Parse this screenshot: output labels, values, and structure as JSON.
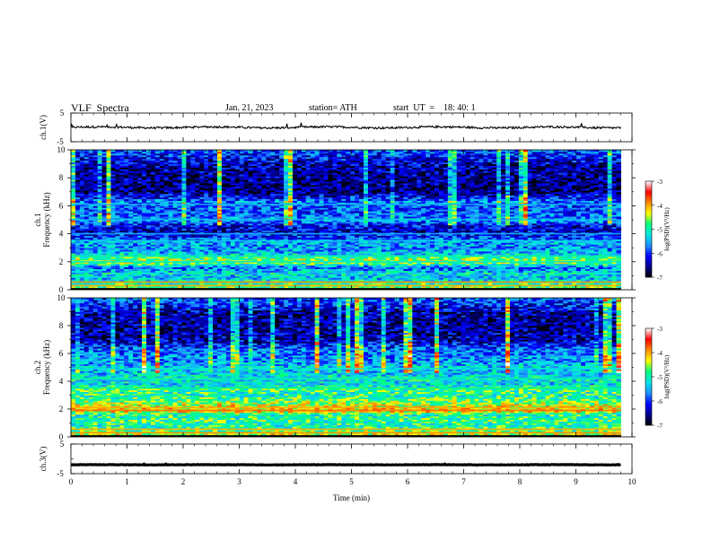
{
  "header": {
    "title": "VLF  Spectra",
    "date": "Jan. 21, 2023",
    "station": "station= ATH",
    "start": "start  UT  =    18: 40: 1"
  },
  "chart_data": [
    {
      "id": "ch1-waveform",
      "type": "line",
      "ylabel": "ch.1(V)",
      "ylim": [
        -5,
        5
      ],
      "yticks": [
        "5",
        "-5"
      ],
      "xlim": [
        0,
        10
      ],
      "series": [
        {
          "values_summary": {
            "baseline": 0,
            "noise_amplitude": 0.6,
            "x_end": 9.8
          }
        }
      ]
    },
    {
      "id": "ch1-spectrogram",
      "type": "heatmap",
      "ylabel": "ch.1\nFrequency  (kHz)",
      "ylim": [
        0,
        10
      ],
      "yticks": [
        "0",
        "2",
        "4",
        "6",
        "8",
        "10"
      ],
      "xlim": [
        0,
        10
      ],
      "x_end": 9.8,
      "profile": [
        [
          0.0,
          -4.3
        ],
        [
          0.3,
          -4.9
        ],
        [
          0.6,
          -5.0
        ],
        [
          0.8,
          -5.4
        ],
        [
          1.2,
          -5.2
        ],
        [
          1.6,
          -5.8
        ],
        [
          1.9,
          -4.7
        ],
        [
          2.1,
          -4.5
        ],
        [
          2.4,
          -5.0
        ],
        [
          2.7,
          -5.5
        ],
        [
          3.0,
          -5.6
        ],
        [
          3.4,
          -5.5
        ],
        [
          3.8,
          -6.0
        ],
        [
          4.2,
          -6.3
        ],
        [
          4.6,
          -6.2
        ],
        [
          5.0,
          -5.5
        ],
        [
          5.3,
          -5.8
        ],
        [
          5.8,
          -5.9
        ],
        [
          6.3,
          -5.7
        ],
        [
          7.0,
          -6.6
        ],
        [
          8.0,
          -6.5
        ],
        [
          9.0,
          -6.4
        ],
        [
          10.0,
          -5.8
        ]
      ],
      "lines": [
        {
          "freq": 0.3,
          "value": -4.0
        },
        {
          "freq": 0.55,
          "value": -3.9
        },
        {
          "freq": 2.0,
          "value": -5.1
        },
        {
          "freq": 2.4,
          "value": -5.0
        },
        {
          "freq": 3.5,
          "value": -5.3
        },
        {
          "freq": 4.0,
          "value": -5.5
        },
        {
          "freq": 5.0,
          "value": -5.4
        },
        {
          "freq": 6.1,
          "value": -5.5
        }
      ]
    },
    {
      "id": "ch1-colorbar",
      "type": "colorbar",
      "label": "log(PSD)(V²/Hz)",
      "range": [
        -7,
        -3
      ],
      "ticks": [
        "-3",
        "-4",
        "-5",
        "-6",
        "-7"
      ]
    },
    {
      "id": "ch2-spectrogram",
      "type": "heatmap",
      "ylabel": "ch.2\nFrequency  (kHz)",
      "ylim": [
        0,
        10
      ],
      "yticks": [
        "0",
        "2",
        "4",
        "6",
        "8",
        "10"
      ],
      "xlim": [
        0,
        10
      ],
      "x_end": 9.8,
      "profile": [
        [
          0.0,
          -4.1
        ],
        [
          0.4,
          -4.7
        ],
        [
          0.8,
          -5.0
        ],
        [
          1.2,
          -4.8
        ],
        [
          1.6,
          -5.0
        ],
        [
          1.9,
          -4.0
        ],
        [
          2.1,
          -4.2
        ],
        [
          2.5,
          -4.6
        ],
        [
          3.0,
          -5.0
        ],
        [
          3.4,
          -4.8
        ],
        [
          3.8,
          -5.3
        ],
        [
          4.2,
          -5.1
        ],
        [
          4.6,
          -5.4
        ],
        [
          5.0,
          -5.3
        ],
        [
          5.4,
          -5.6
        ],
        [
          5.8,
          -5.6
        ],
        [
          6.3,
          -5.8
        ],
        [
          7.0,
          -6.4
        ],
        [
          8.0,
          -6.5
        ],
        [
          9.0,
          -6.4
        ],
        [
          10.0,
          -5.8
        ]
      ],
      "lines": [
        {
          "freq": 0.3,
          "value": -3.9
        },
        {
          "freq": 0.55,
          "value": -4.0
        },
        {
          "freq": 1.9,
          "value": -3.8
        },
        {
          "freq": 2.1,
          "value": -4.0
        },
        {
          "freq": 3.5,
          "value": -4.8
        },
        {
          "freq": 4.2,
          "value": -5.0
        },
        {
          "freq": 4.9,
          "value": -5.2
        }
      ]
    },
    {
      "id": "ch2-colorbar",
      "type": "colorbar",
      "label": "log(PSD)(V²/Hz)",
      "range": [
        -7,
        -3
      ],
      "ticks": [
        "-3",
        "-4",
        "-5",
        "-6",
        "-7"
      ]
    },
    {
      "id": "ch3-waveform",
      "type": "line",
      "ylabel": "ch.3(V)",
      "ylim": [
        -5,
        5
      ],
      "yticks": [
        "5",
        "-5"
      ],
      "xlim": [
        0,
        10
      ],
      "series": [
        {
          "values_summary": {
            "baseline": -2.0,
            "noise_amplitude": 0.1,
            "x_end": 9.8
          }
        }
      ]
    }
  ],
  "xaxis": {
    "label": "Time  (min)",
    "ticks": [
      "0",
      "1",
      "2",
      "3",
      "4",
      "5",
      "6",
      "7",
      "8",
      "9",
      "10"
    ]
  },
  "colors": {
    "colormap": [
      "#000000",
      "#00008b",
      "#0000ff",
      "#1e90ff",
      "#00e5e5",
      "#00ff7f",
      "#ffff00",
      "#ff8c00",
      "#ff0000",
      "#ffffff"
    ]
  }
}
